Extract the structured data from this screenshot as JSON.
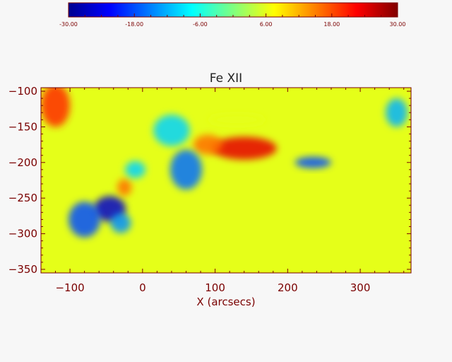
{
  "chart_data": {
    "type": "heatmap",
    "title": "Fe XII",
    "xlabel": "X (arcsecs)",
    "ylabel": "",
    "xlim": [
      -140,
      370
    ],
    "ylim": [
      -355,
      -95
    ],
    "x_ticks": [
      -100,
      0,
      100,
      200,
      300
    ],
    "y_ticks": [
      -100,
      -150,
      -200,
      -250,
      -300,
      -350
    ],
    "x_tick_labels": [
      "−100",
      "0",
      "100",
      "200",
      "300"
    ],
    "y_tick_labels": [
      "−100",
      "−150",
      "−200",
      "−250",
      "−300",
      "−350"
    ],
    "colorbar": {
      "min": -30,
      "max": 30,
      "ticks": [
        -30,
        -18,
        -6,
        6,
        18,
        30
      ],
      "tick_labels": [
        "-30.00",
        "-18.00",
        "-6.00",
        "6.00",
        "18.00",
        "30.00"
      ],
      "colormap": "jet"
    },
    "background_value": 6,
    "features": [
      {
        "x": 140,
        "y": -180,
        "value": 24,
        "sx": 45,
        "sy": 16
      },
      {
        "x": 90,
        "y": -175,
        "value": 16,
        "sx": 20,
        "sy": 14
      },
      {
        "x": 130,
        "y": -140,
        "value": 6,
        "sx": 40,
        "sy": 8
      },
      {
        "x": -45,
        "y": -265,
        "value": -26,
        "sx": 22,
        "sy": 18
      },
      {
        "x": -80,
        "y": -280,
        "value": -18,
        "sx": 22,
        "sy": 25
      },
      {
        "x": 60,
        "y": -210,
        "value": -16,
        "sx": 22,
        "sy": 28
      },
      {
        "x": 40,
        "y": -155,
        "value": -10,
        "sx": 25,
        "sy": 22
      },
      {
        "x": 235,
        "y": -200,
        "value": -18,
        "sx": 25,
        "sy": 8
      },
      {
        "x": 350,
        "y": -130,
        "value": -12,
        "sx": 15,
        "sy": 20
      },
      {
        "x": -120,
        "y": -120,
        "value": 20,
        "sx": 20,
        "sy": 30
      },
      {
        "x": -25,
        "y": -235,
        "value": 16,
        "sx": 10,
        "sy": 12
      },
      {
        "x": -10,
        "y": -210,
        "value": -10,
        "sx": 14,
        "sy": 12
      },
      {
        "x": -30,
        "y": -285,
        "value": -14,
        "sx": 14,
        "sy": 14
      }
    ]
  }
}
